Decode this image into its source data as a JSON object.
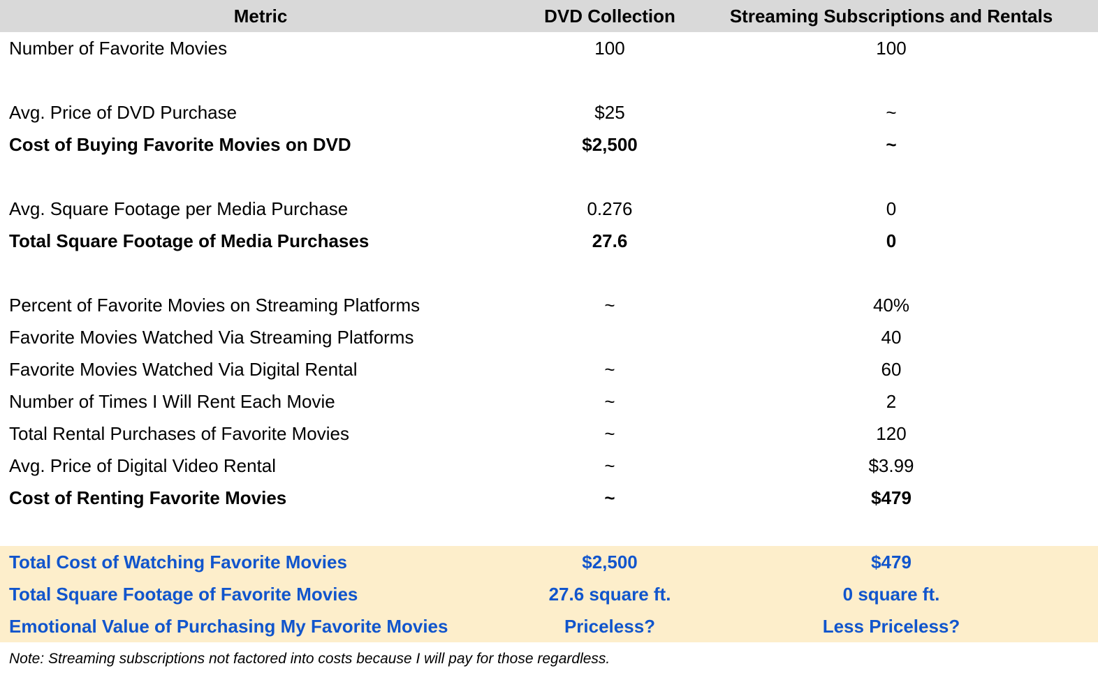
{
  "table": {
    "headers": [
      "Metric",
      "DVD Collection",
      "Streaming Subscriptions and Rentals"
    ],
    "rows": [
      {
        "metric": "Number of Favorite Movies",
        "dvd": "100",
        "streaming": "100",
        "style": "normal"
      },
      {
        "metric": "",
        "dvd": "",
        "streaming": "",
        "style": "blank"
      },
      {
        "metric": "Avg. Price of DVD Purchase",
        "dvd": "$25",
        "streaming": "~",
        "style": "normal"
      },
      {
        "metric": "Cost of Buying Favorite Movies on DVD",
        "dvd": "$2,500",
        "streaming": "~",
        "style": "bold"
      },
      {
        "metric": "",
        "dvd": "",
        "streaming": "",
        "style": "blank"
      },
      {
        "metric": "Avg. Square Footage per Media Purchase",
        "dvd": "0.276",
        "streaming": "0",
        "style": "normal"
      },
      {
        "metric": "Total Square Footage of Media Purchases",
        "dvd": "27.6",
        "streaming": "0",
        "style": "bold"
      },
      {
        "metric": "",
        "dvd": "",
        "streaming": "",
        "style": "blank"
      },
      {
        "metric": "Percent of Favorite Movies on Streaming Platforms",
        "dvd": "~",
        "streaming": "40%",
        "style": "normal"
      },
      {
        "metric": "Favorite Movies Watched Via Streaming Platforms",
        "dvd": "",
        "streaming": "40",
        "style": "normal"
      },
      {
        "metric": "Favorite Movies Watched Via Digital Rental",
        "dvd": "~",
        "streaming": "60",
        "style": "normal"
      },
      {
        "metric": "Number of Times I Will Rent Each Movie",
        "dvd": "~",
        "streaming": "2",
        "style": "normal"
      },
      {
        "metric": "Total Rental Purchases of Favorite Movies",
        "dvd": "~",
        "streaming": "120",
        "style": "normal"
      },
      {
        "metric": "Avg. Price of Digital Video Rental",
        "dvd": "~",
        "streaming": "$3.99",
        "style": "normal"
      },
      {
        "metric": "Cost of Renting Favorite Movies",
        "dvd": "~",
        "streaming": "$479",
        "style": "bold"
      },
      {
        "metric": "",
        "dvd": "",
        "streaming": "",
        "style": "blank"
      },
      {
        "metric": "Total Cost of Watching Favorite Movies",
        "dvd": "$2,500",
        "streaming": "$479",
        "style": "summary"
      },
      {
        "metric": "Total Square Footage of Favorite Movies",
        "dvd": "27.6 square ft.",
        "streaming": "0 square ft.",
        "style": "summary"
      },
      {
        "metric": "Emotional Value of Purchasing My Favorite Movies",
        "dvd": "Priceless?",
        "streaming": "Less Priceless?",
        "style": "summary"
      }
    ]
  },
  "note": "Note: Streaming subscriptions not factored into costs because I will pay for those regardless.",
  "colors": {
    "header_bg": "#d9d9d9",
    "summary_bg": "#fdeecb",
    "summary_text": "#1155cc"
  }
}
